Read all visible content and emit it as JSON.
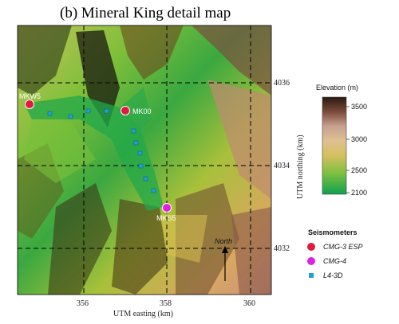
{
  "title": "(b) Mineral King detail map",
  "axes": {
    "xlabel": "UTM easting (km)",
    "ylabel": "UTM northing (km)",
    "xticks": [
      {
        "label": "356",
        "value": 356
      },
      {
        "label": "358",
        "value": 358
      },
      {
        "label": "360",
        "value": 360
      }
    ],
    "yticks": [
      {
        "label": "4036",
        "value": 4036
      },
      {
        "label": "4034",
        "value": 4034
      },
      {
        "label": "4032",
        "value": 4032
      }
    ]
  },
  "colorbar": {
    "title": "Elevation (m)",
    "ticks": [
      "3500",
      "3000",
      "2500",
      "2100"
    ],
    "colors": [
      "#2a1a10",
      "#9a6a55",
      "#e0bfa0",
      "#d8c070",
      "#a8c040",
      "#40b030",
      "#10a050"
    ]
  },
  "stations": [
    {
      "name": "MKW5",
      "type": "CMG-3 ESP",
      "color": "#e01a3c"
    },
    {
      "name": "MK00",
      "type": "CMG-3 ESP",
      "color": "#e01a3c"
    },
    {
      "name": "MKS5",
      "type": "CMG-4",
      "color": "#e020e0"
    }
  ],
  "legend": {
    "title": "Seismometers",
    "items": [
      {
        "label": "CMG-3 ESP",
        "color": "#e01a3c",
        "shape": "circle"
      },
      {
        "label": "CMG-4",
        "color": "#e020e0",
        "shape": "circle"
      },
      {
        "label": "L4-3D",
        "color": "#1fa0d8",
        "shape": "square"
      }
    ]
  },
  "north_arrow": {
    "label": "North"
  }
}
